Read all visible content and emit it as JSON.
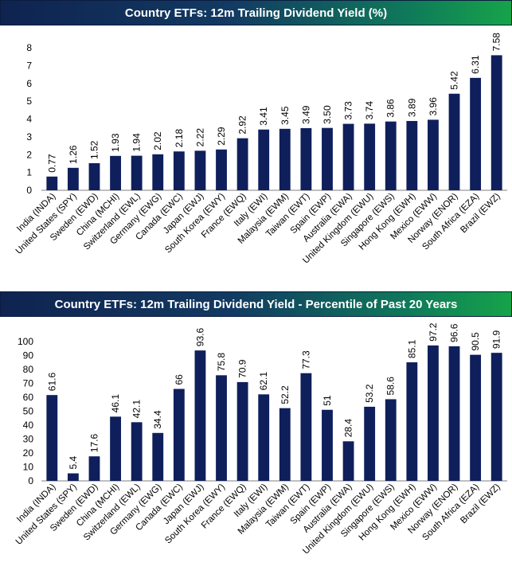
{
  "chart_data": [
    {
      "type": "bar",
      "title": "Country ETFs: 12m Trailing Dividend Yield (%)",
      "categories": [
        "India (INDA)",
        "United States (SPY)",
        "Sweden (EWD)",
        "China (MCHI)",
        "Switzerland (EWL)",
        "Germany (EWG)",
        "Canada (EWC)",
        "Japan (EWJ)",
        "South Korea (EWY)",
        "France (EWQ)",
        "Italy (EWI)",
        "Malaysia (EWM)",
        "Taiwan (EWT)",
        "Spain (EWP)",
        "Australia (EWA)",
        "United Kingdom (EWU)",
        "Singapore (EWS)",
        "Hong Kong (EWH)",
        "Mexico (EWW)",
        "Norway (ENOR)",
        "South Africa (EZA)",
        "Brazil (EWZ)"
      ],
      "values": [
        0.77,
        1.26,
        1.52,
        1.93,
        1.94,
        2.02,
        2.18,
        2.22,
        2.29,
        2.92,
        3.41,
        3.45,
        3.49,
        3.5,
        3.73,
        3.74,
        3.86,
        3.89,
        3.96,
        5.42,
        6.31,
        7.58
      ],
      "data_labels": [
        "0.77",
        "1.26",
        "1.52",
        "1.93",
        "1.94",
        "2.02",
        "2.18",
        "2.22",
        "2.29",
        "2.92",
        "3.41",
        "3.45",
        "3.49",
        "3.50",
        "3.73",
        "3.74",
        "3.86",
        "3.89",
        "3.96",
        "5.42",
        "6.31",
        "7.58"
      ],
      "yticks": [
        "0",
        "1",
        "2",
        "3",
        "4",
        "5",
        "6",
        "7",
        "8"
      ],
      "ylim": [
        0,
        8
      ],
      "color": "#0f1f5c",
      "grid": false
    },
    {
      "type": "bar",
      "title": "Country ETFs: 12m Trailing Dividend Yield - Percentile of Past 20 Years",
      "categories": [
        "India (INDA)",
        "United States (SPY)",
        "Sweden (EWD)",
        "China (MCHI)",
        "Switzerland (EWL)",
        "Germany (EWG)",
        "Canada (EWC)",
        "Japan (EWJ)",
        "South Korea (EWY)",
        "France (EWQ)",
        "Italy (EWI)",
        "Malaysia (EWM)",
        "Taiwan (EWT)",
        "Spain (EWP)",
        "Australia (EWA)",
        "United Kingdom (EWU)",
        "Singapore (EWS)",
        "Hong Kong (EWH)",
        "Mexico (EWW)",
        "Norway (ENOR)",
        "South Africa (EZA)",
        "Brazil (EWZ)"
      ],
      "values": [
        61.6,
        5.4,
        17.6,
        46.1,
        42.1,
        34.4,
        66,
        93.6,
        75.8,
        70.9,
        62.1,
        52.2,
        77.3,
        51,
        28.4,
        53.2,
        58.6,
        85.1,
        97.2,
        96.6,
        90.5,
        91.9
      ],
      "data_labels": [
        "61.6",
        "5.4",
        "17.6",
        "46.1",
        "42.1",
        "34.4",
        "66",
        "93.6",
        "75.8",
        "70.9",
        "62.1",
        "52.2",
        "77.3",
        "51",
        "28.4",
        "53.2",
        "58.6",
        "85.1",
        "97.2",
        "96.6",
        "90.5",
        "91.9"
      ],
      "yticks": [
        "0",
        "10",
        "20",
        "30",
        "40",
        "50",
        "60",
        "70",
        "80",
        "90",
        "100"
      ],
      "ylim": [
        0,
        100
      ],
      "color": "#0f1f5c",
      "grid": false
    }
  ]
}
